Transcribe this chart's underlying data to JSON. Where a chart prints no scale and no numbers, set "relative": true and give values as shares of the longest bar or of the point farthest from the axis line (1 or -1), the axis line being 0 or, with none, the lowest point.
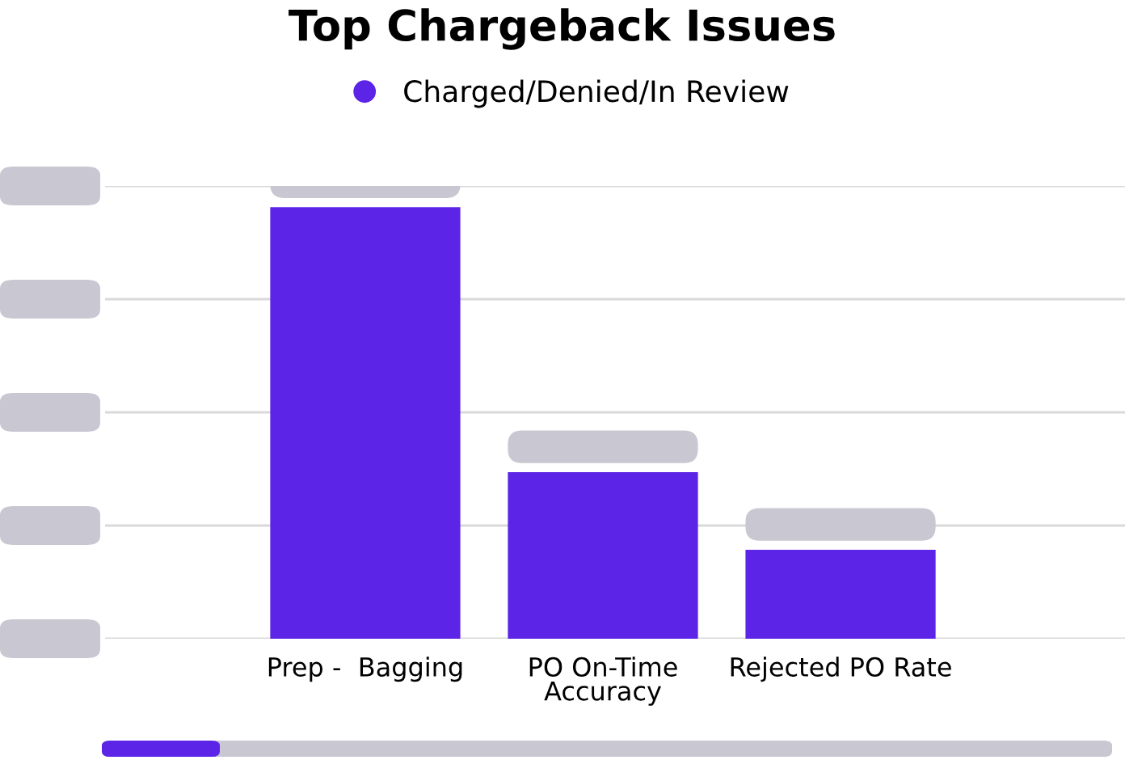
{
  "chart_data": {
    "type": "bar",
    "title": "Top Chargeback Issues",
    "categories": [
      "Prep -  Bagging",
      "PO On-Time\nAccuracy",
      "Rejected PO Rate"
    ],
    "series": [
      {
        "name": "Charged/Denied/In Review",
        "color": "#5c24e6",
        "values": [
          1,
          0.386,
          0.206
        ]
      }
    ],
    "relative": true,
    "grid": "y",
    "legend": "top"
  }
}
